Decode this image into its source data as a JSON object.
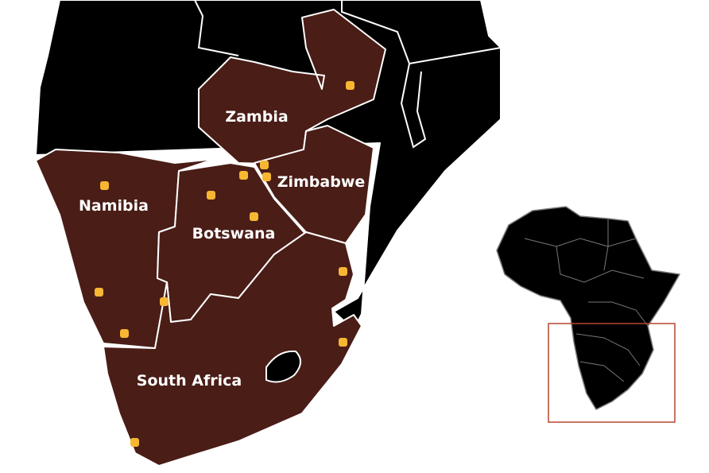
{
  "map": {
    "region": "Southern Africa",
    "highlight_color": "#4a1d17",
    "marker_color": "#f7b733",
    "inset_frame_color": "#b5472e",
    "countries": [
      {
        "name": "Zambia"
      },
      {
        "name": "Zimbabwe"
      },
      {
        "name": "Namibia"
      },
      {
        "name": "Botswana"
      },
      {
        "name": "South Africa"
      }
    ],
    "marker_count": 14
  }
}
